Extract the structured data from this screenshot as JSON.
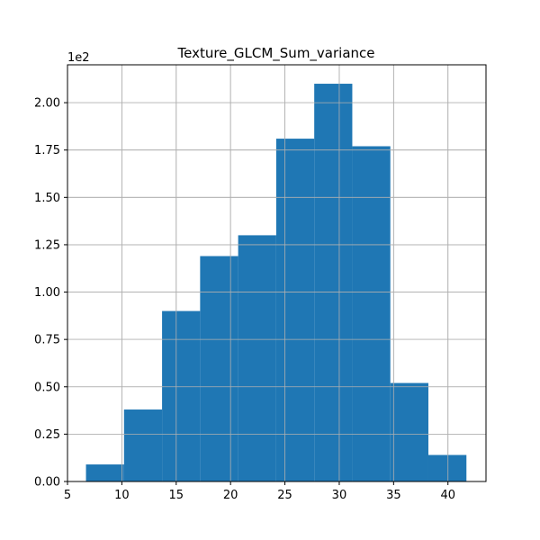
{
  "chart_data": {
    "type": "bar",
    "title": "Texture_GLCM_Sum_variance",
    "xlabel": "",
    "ylabel": "",
    "y_offset_label": "1e2",
    "xlim": [
      5,
      43.5
    ],
    "ylim": [
      0,
      2.2
    ],
    "grid": true,
    "bar_color": "#1f77b4",
    "x_ticks": [
      5,
      10,
      15,
      20,
      25,
      30,
      35,
      40
    ],
    "y_ticks": [
      0,
      0.25,
      0.5,
      0.75,
      1.0,
      1.25,
      1.5,
      1.75,
      2.0
    ],
    "y_tick_labels": [
      "0.00",
      "0.25",
      "0.50",
      "0.75",
      "1.00",
      "1.25",
      "1.50",
      "1.75",
      "2.00"
    ],
    "bin_edges": [
      6.7,
      10.2,
      13.7,
      17.2,
      20.7,
      24.2,
      27.7,
      31.2,
      34.7,
      38.2,
      41.7
    ],
    "values": [
      0.09,
      0.38,
      0.9,
      1.19,
      1.3,
      1.81,
      2.1,
      1.77,
      0.52,
      0.14
    ]
  }
}
